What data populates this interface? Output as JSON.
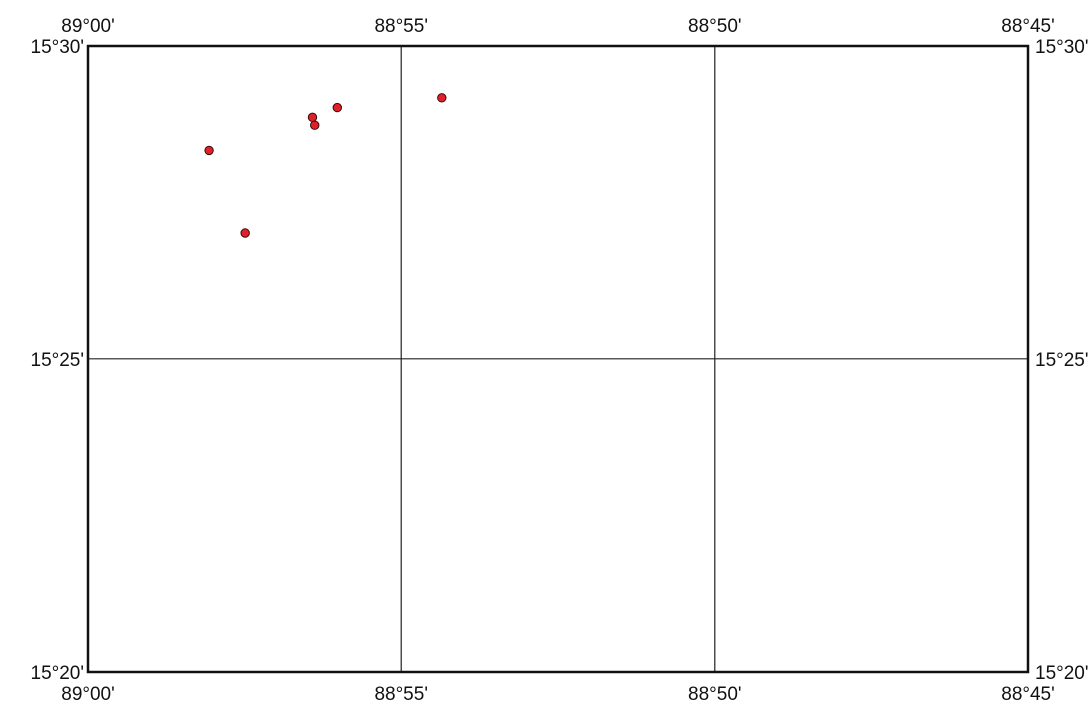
{
  "map": {
    "colors": {
      "frame": "#111111",
      "grid": "#222222",
      "point_fill": "#e0202a",
      "point_stroke": "#3a0a0a",
      "background": "#ffffff"
    },
    "extent": {
      "lon_min": -89.0,
      "lon_max": -88.75,
      "lat_min": 15.3333,
      "lat_max": 15.5
    },
    "gridlines": {
      "lon": [
        -88.9167,
        -88.8333
      ],
      "lat": [
        15.4167
      ]
    },
    "labels": {
      "top": [
        {
          "lon": -89.0,
          "text": "89°00'"
        },
        {
          "lon": -88.9167,
          "text": "88°55'"
        },
        {
          "lon": -88.8333,
          "text": "88°50'"
        },
        {
          "lon": -88.75,
          "text": "88°45'"
        }
      ],
      "bottom": [
        {
          "lon": -89.0,
          "text": "89°00'"
        },
        {
          "lon": -88.9167,
          "text": "88°55'"
        },
        {
          "lon": -88.8333,
          "text": "88°50'"
        },
        {
          "lon": -88.75,
          "text": "88°45'"
        }
      ],
      "left": [
        {
          "lat": 15.5,
          "text": "15°30'"
        },
        {
          "lat": 15.4167,
          "text": "15°25'"
        },
        {
          "lat": 15.3333,
          "text": "15°20'"
        }
      ],
      "right": [
        {
          "lat": 15.5,
          "text": "15°30'"
        },
        {
          "lat": 15.4167,
          "text": "15°25'"
        },
        {
          "lat": 15.3333,
          "text": "15°20'"
        }
      ]
    },
    "points": [
      {
        "lon": -88.9059,
        "lat": 15.4862
      },
      {
        "lon": -88.9337,
        "lat": 15.4836
      },
      {
        "lon": -88.9403,
        "lat": 15.481
      },
      {
        "lon": -88.9397,
        "lat": 15.4789
      },
      {
        "lon": -88.9678,
        "lat": 15.4722
      },
      {
        "lon": -88.9582,
        "lat": 15.4502
      }
    ]
  }
}
